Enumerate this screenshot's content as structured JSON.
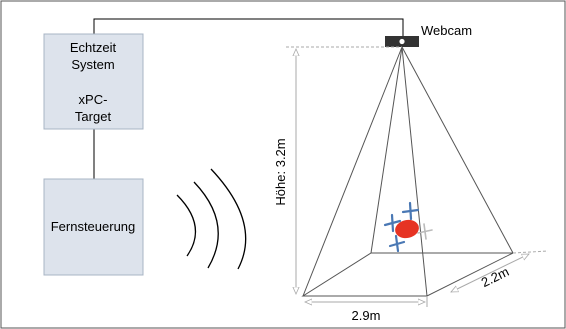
{
  "blocks": {
    "realtime_line1": "Echtzeit",
    "realtime_line2": "System",
    "xpc_line1": "xPC-",
    "xpc_line2": "Target",
    "remote": "Fernsteuerung"
  },
  "camera": {
    "label": "Webcam"
  },
  "dimensions": {
    "height": "Höhe: 3.2m",
    "width": "2.9m",
    "depth": "2.2m"
  },
  "colors": {
    "block_fill": "#dde3ec",
    "block_stroke": "#a8b4c4",
    "drone_body": "#e63323",
    "rotor": "#4a78b4",
    "dimension_line": "#aaaaaa"
  }
}
